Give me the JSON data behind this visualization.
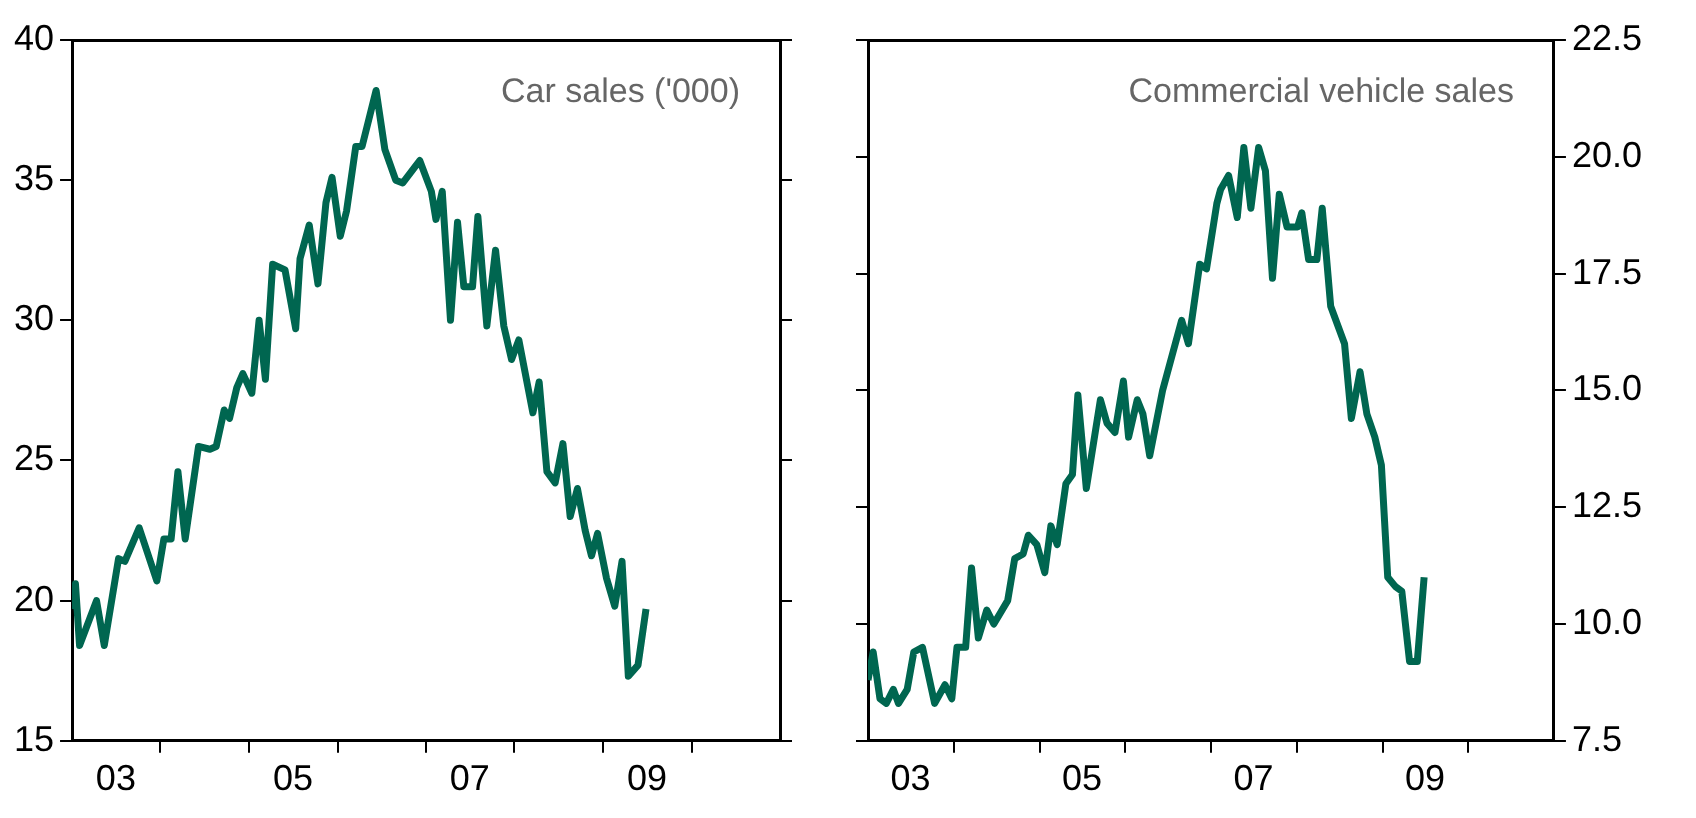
{
  "chart_data": [
    {
      "type": "line",
      "title": "Car sales ('000)",
      "grid": false,
      "marker": "none",
      "line_style": "solid",
      "x": [
        "2003-01-01",
        "2003-01-15",
        "2003-02-01",
        "2003-04-12",
        "2003-05-14",
        "2003-07-12",
        "2003-08-07",
        "2003-10-05",
        "2003-12-17",
        "2004-01-15",
        "2004-02-14",
        "2004-03-13",
        "2004-04-12",
        "2004-06-06",
        "2004-07-23",
        "2004-08-18",
        "2004-09-20",
        "2004-10-12",
        "2004-11-11",
        "2004-12-06",
        "2005-01-12",
        "2005-02-11",
        "2005-03-09",
        "2005-04-08",
        "2005-05-29",
        "2005-07-12",
        "2005-07-30",
        "2005-09-06",
        "2005-10-12",
        "2005-11-14",
        "2005-12-09",
        "2006-01-12",
        "2006-02-07",
        "2006-03-17",
        "2006-04-12",
        "2006-06-09",
        "2006-07-15",
        "2006-08-29",
        "2006-09-27",
        "2006-12-06",
        "2007-01-23",
        "2007-02-11",
        "2007-03-09",
        "2007-04-12",
        "2007-05-11",
        "2007-06-06",
        "2007-07-12",
        "2007-08-03",
        "2007-09-09",
        "2007-10-15",
        "2007-11-18",
        "2007-12-20",
        "2008-01-19",
        "2008-03-17",
        "2008-04-12",
        "2008-05-14",
        "2008-06-17",
        "2008-07-19",
        "2008-08-18",
        "2008-09-17",
        "2008-10-19",
        "2008-11-14",
        "2008-12-09",
        "2009-01-15",
        "2009-02-18",
        "2009-03-20",
        "2009-04-15",
        "2009-05-25",
        "2009-06-27"
      ],
      "series": [
        {
          "color": "#006650",
          "values": [
            19.7,
            20.6,
            18.4,
            20.0,
            18.4,
            21.5,
            21.4,
            22.6,
            20.7,
            22.2,
            22.2,
            24.6,
            22.2,
            25.5,
            25.4,
            25.5,
            26.8,
            26.5,
            27.6,
            28.1,
            27.4,
            30.0,
            27.9,
            32.0,
            31.8,
            29.7,
            32.2,
            33.4,
            31.3,
            34.2,
            35.1,
            33.0,
            33.9,
            36.2,
            36.2,
            38.2,
            36.1,
            35.0,
            34.9,
            35.7,
            34.6,
            33.6,
            34.6,
            30.0,
            33.5,
            31.2,
            31.2,
            33.7,
            29.8,
            32.5,
            29.8,
            28.6,
            29.3,
            26.7,
            27.8,
            24.6,
            24.2,
            25.6,
            23.0,
            24.0,
            22.5,
            21.6,
            22.4,
            20.8,
            19.8,
            21.4,
            17.3,
            17.7,
            19.7
          ]
        }
      ],
      "xlim": [
        "2003-01-01",
        "2011-01-01"
      ],
      "xticks": [
        {
          "value": "2003-07-01",
          "label": "03"
        },
        {
          "value": "2004-01-01",
          "label": null
        },
        {
          "value": "2005-01-01",
          "label": null
        },
        {
          "value": "2005-07-01",
          "label": "05"
        },
        {
          "value": "2006-01-01",
          "label": null
        },
        {
          "value": "2007-01-01",
          "label": null
        },
        {
          "value": "2007-07-01",
          "label": "07"
        },
        {
          "value": "2008-01-01",
          "label": null
        },
        {
          "value": "2009-01-01",
          "label": null
        },
        {
          "value": "2009-07-01",
          "label": "09"
        },
        {
          "value": "2010-01-01",
          "label": null
        }
      ],
      "ylim": [
        15,
        40
      ],
      "yticks": [
        15,
        20,
        25,
        30,
        35,
        40
      ]
    },
    {
      "type": "line",
      "title": "Commercial vehicle sales",
      "grid": false,
      "marker": "none",
      "line_style": "solid",
      "x": [
        "2003-01-01",
        "2003-01-23",
        "2003-02-21",
        "2003-03-20",
        "2003-04-19",
        "2003-05-11",
        "2003-06-17",
        "2003-07-15",
        "2003-08-21",
        "2003-10-12",
        "2003-11-25",
        "2003-12-24",
        "2004-01-15",
        "2004-02-21",
        "2004-03-17",
        "2004-04-15",
        "2004-05-21",
        "2004-06-20",
        "2004-08-18",
        "2004-09-17",
        "2004-10-23",
        "2004-11-14",
        "2004-12-20",
        "2005-01-23",
        "2005-02-18",
        "2005-03-17",
        "2005-04-23",
        "2005-05-21",
        "2005-06-13",
        "2005-07-19",
        "2005-09-17",
        "2005-10-15",
        "2005-11-18",
        "2005-12-24",
        "2006-01-15",
        "2006-02-21",
        "2006-03-17",
        "2006-04-15",
        "2006-06-09",
        "2006-08-29",
        "2006-09-27",
        "2006-11-14",
        "2006-12-13",
        "2007-01-26",
        "2007-02-11",
        "2007-03-17",
        "2007-04-23",
        "2007-05-21",
        "2007-06-20",
        "2007-07-23",
        "2007-08-21",
        "2007-09-20",
        "2007-10-19",
        "2007-11-21",
        "2008-01-05",
        "2008-01-23",
        "2008-02-21",
        "2008-03-27",
        "2008-04-19",
        "2008-05-25",
        "2008-07-01",
        "2008-07-23",
        "2008-08-21",
        "2008-09-27",
        "2008-10-26",
        "2008-11-29",
        "2008-12-27",
        "2009-01-23",
        "2009-02-25",
        "2009-03-24",
        "2009-04-26",
        "2009-05-29",
        "2009-06-27"
      ],
      "series": [
        {
          "color": "#006650",
          "axis": "y2",
          "values": [
            8.8,
            9.4,
            8.4,
            8.3,
            8.6,
            8.3,
            8.6,
            9.4,
            9.5,
            8.3,
            8.7,
            8.4,
            9.5,
            9.5,
            11.2,
            9.7,
            10.3,
            10.0,
            10.5,
            11.4,
            11.5,
            11.9,
            11.7,
            11.1,
            12.1,
            11.7,
            13.0,
            13.2,
            14.9,
            12.9,
            14.8,
            14.3,
            14.1,
            15.2,
            14.0,
            14.8,
            14.5,
            13.6,
            15.0,
            16.5,
            16.0,
            17.7,
            17.6,
            19.0,
            19.3,
            19.6,
            18.7,
            20.2,
            18.9,
            20.2,
            19.7,
            17.4,
            19.2,
            18.5,
            18.5,
            18.8,
            17.8,
            17.8,
            18.9,
            16.8,
            16.3,
            16.0,
            14.4,
            15.4,
            14.5,
            14.0,
            13.4,
            11.0,
            10.8,
            10.7,
            9.2,
            9.2,
            11.0
          ]
        }
      ],
      "xlim": [
        "2003-01-01",
        "2011-01-01"
      ],
      "xticks": [
        {
          "value": "2003-07-01",
          "label": "03"
        },
        {
          "value": "2004-01-01",
          "label": null
        },
        {
          "value": "2005-01-01",
          "label": null
        },
        {
          "value": "2005-07-01",
          "label": "05"
        },
        {
          "value": "2006-01-01",
          "label": null
        },
        {
          "value": "2007-01-01",
          "label": null
        },
        {
          "value": "2007-07-01",
          "label": "07"
        },
        {
          "value": "2008-01-01",
          "label": null
        },
        {
          "value": "2009-01-01",
          "label": null
        },
        {
          "value": "2009-07-01",
          "label": "09"
        },
        {
          "value": "2010-01-01",
          "label": null
        }
      ],
      "y2lim": [
        7.5,
        22.5
      ],
      "y2ticks": [
        7.5,
        {
          "value": 10,
          "label": "10.0"
        },
        12.5,
        {
          "value": 15,
          "label": "15.0"
        },
        17.5,
        {
          "value": 20,
          "label": "20.0"
        },
        22.5
      ]
    }
  ]
}
